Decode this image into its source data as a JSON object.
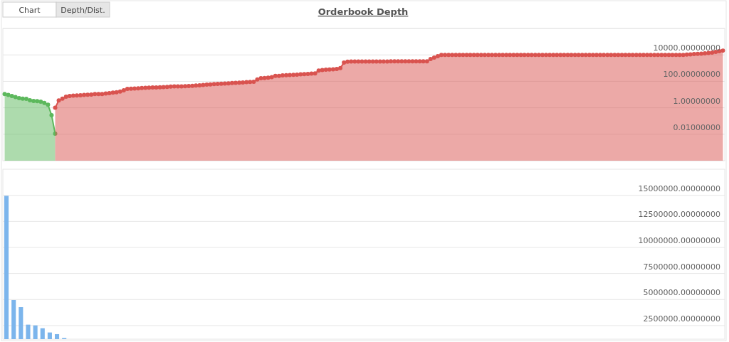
{
  "chart_data": [
    {
      "type": "area",
      "title": "Orderbook Depth",
      "annotations": [
        "Chart",
        "Depth/Dist."
      ],
      "log": true,
      "grid": "y",
      "marker": "circle",
      "tick_labels": "y",
      "ylim": [
        0.0001,
        1000000
      ],
      "yticks": [
        {
          "value": 0.01,
          "label": "0.01000000"
        },
        {
          "value": 1,
          "label": "1.00000000"
        },
        {
          "value": 100,
          "label": "100.00000000"
        },
        {
          "value": 10000,
          "label": "10000.00000000"
        },
        {
          "value": 1000000,
          "label": null
        }
      ],
      "categories": [
        null,
        null,
        null,
        null,
        null,
        null,
        null,
        null,
        null,
        null,
        null,
        null,
        null,
        null,
        null,
        null,
        null,
        null,
        null,
        null,
        null,
        null,
        null,
        null,
        null,
        null,
        null,
        null,
        null,
        null,
        null,
        null,
        null,
        null,
        null,
        null,
        null,
        null,
        null,
        null,
        null,
        null,
        null,
        null,
        null,
        null,
        null,
        null,
        null,
        null,
        null,
        null,
        null,
        null,
        null,
        null,
        null,
        null,
        null,
        null,
        null,
        null,
        null,
        null,
        null,
        null,
        null,
        null,
        null,
        null,
        null,
        null,
        null,
        null,
        null,
        null,
        null,
        null,
        null,
        null,
        null,
        null,
        null,
        null,
        null,
        null,
        null,
        null,
        null,
        null,
        null,
        null,
        null,
        null,
        null,
        null,
        null,
        null,
        null,
        null,
        null,
        null,
        null,
        null,
        null,
        null,
        null,
        null,
        null,
        null,
        null,
        null,
        null,
        null,
        null,
        null,
        null,
        null,
        null,
        null,
        null,
        null,
        null,
        null,
        null,
        null,
        null,
        null,
        null,
        null,
        null,
        null,
        null,
        null,
        null,
        null,
        null,
        null,
        null,
        null,
        null,
        null,
        null,
        null,
        null,
        null,
        null,
        null,
        null,
        null,
        null,
        null,
        null,
        null,
        null,
        null,
        null,
        null,
        null,
        null,
        null,
        null,
        null,
        null,
        null,
        null,
        null,
        null,
        null,
        null,
        null,
        null,
        null,
        null,
        null,
        null,
        null,
        null,
        null,
        null,
        null,
        null,
        null,
        null,
        null,
        null,
        null,
        null,
        null,
        null,
        null,
        null,
        null,
        null,
        null,
        null,
        null,
        null,
        null,
        null
      ],
      "series": [
        {
          "color": "#5cb85c",
          "values": [
            11,
            9.4,
            7.8,
            6.5,
            5.4,
            4.9,
            4.7,
            3.7,
            3.3,
            3.2,
            2.9,
            2.3,
            1.7,
            0.28,
            0.011,
            null,
            null,
            null,
            null,
            null,
            null,
            null,
            null,
            null,
            null,
            null,
            null,
            null,
            null,
            null,
            null,
            null,
            null,
            null,
            null,
            null,
            null,
            null,
            null,
            null,
            null,
            null,
            null,
            null,
            null,
            null,
            null,
            null,
            null,
            null,
            null,
            null,
            null,
            null,
            null,
            null,
            null,
            null,
            null,
            null,
            null,
            null,
            null,
            null,
            null,
            null,
            null,
            null,
            null,
            null,
            null,
            null,
            null,
            null,
            null,
            null,
            null,
            null,
            null,
            null,
            null,
            null,
            null,
            null,
            null,
            null,
            null,
            null,
            null,
            null,
            null,
            null,
            null,
            null,
            null,
            null,
            null,
            null,
            null,
            null,
            null,
            null,
            null,
            null,
            null,
            null,
            null,
            null,
            null,
            null,
            null,
            null,
            null,
            null,
            null,
            null,
            null,
            null,
            null,
            null,
            null,
            null,
            null,
            null,
            null,
            null,
            null,
            null,
            null,
            null,
            null,
            null,
            null,
            null,
            null,
            null,
            null,
            null,
            null,
            null,
            null,
            null,
            null,
            null,
            null,
            null,
            null,
            null,
            null,
            null,
            null,
            null,
            null,
            null,
            null,
            null,
            null,
            null,
            null,
            null,
            null,
            null,
            null,
            null,
            null,
            null,
            null,
            null,
            null,
            null,
            null,
            null,
            null,
            null,
            null,
            null,
            null,
            null,
            null,
            null,
            null,
            null,
            null,
            null,
            null,
            null,
            null,
            null,
            null,
            null,
            null,
            null,
            null,
            null,
            null,
            null,
            null,
            null,
            null,
            null
          ]
        },
        {
          "color": "#d9534f",
          "values": [
            null,
            null,
            null,
            null,
            null,
            null,
            null,
            null,
            null,
            null,
            null,
            null,
            null,
            null,
            1.0,
            3.6,
            4.9,
            6.8,
            7.9,
            8.3,
            8.6,
            8.9,
            9.4,
            9.8,
            10,
            11,
            11,
            11,
            12,
            13,
            14,
            15,
            17,
            21,
            27,
            28,
            29,
            30,
            31,
            32,
            33,
            34,
            35,
            36,
            37,
            38,
            40,
            41,
            42,
            42,
            43,
            44,
            46,
            48,
            50,
            53,
            56,
            59,
            62,
            65,
            66,
            69,
            71,
            74,
            77,
            80,
            83,
            86,
            89,
            93,
            140,
            170,
            180,
            190,
            210,
            260,
            260,
            280,
            290,
            300,
            310,
            320,
            340,
            350,
            360,
            380,
            400,
            660,
            710,
            750,
            780,
            810,
            860,
            1000,
            2600,
            3100,
            3200,
            3200,
            3200,
            3200,
            3200,
            3200,
            3200,
            3200,
            3200,
            3200,
            3200,
            3300,
            3300,
            3300,
            3300,
            3300,
            3300,
            3300,
            3300,
            3300,
            3300,
            3300,
            4900,
            6300,
            8000,
            10000,
            10000,
            10000,
            10000,
            10000,
            10000,
            10000,
            10000,
            10000,
            10000,
            10000,
            10000,
            10000,
            10000,
            10000,
            10000,
            10000,
            10000,
            10000,
            10000,
            10000,
            10000,
            10000,
            10000,
            10000,
            10000,
            10000,
            10000,
            10000,
            10000,
            10000,
            10000,
            10000,
            10000,
            10000,
            10000,
            10000,
            10000,
            10000,
            10000,
            10000,
            10000,
            10000,
            10000,
            10000,
            10000,
            10000,
            10000,
            10000,
            10000,
            10000,
            10000,
            10000,
            10000,
            10000,
            10000,
            10000,
            10000,
            10000,
            10000,
            10000,
            10000,
            10000,
            10000,
            10000,
            10000,
            10000,
            10000,
            10500,
            11000,
            11500,
            12000,
            12500,
            13000,
            14000,
            15000,
            17000,
            19000,
            21000
          ]
        }
      ]
    },
    {
      "type": "bar",
      "grid": "y",
      "tick_labels": "y",
      "color": "#7cb5ec",
      "ylim": [
        1200000,
        17500000
      ],
      "yticks": [
        {
          "value": 2500000,
          "label": "2500000.00000000"
        },
        {
          "value": 5000000,
          "label": "5000000.00000000"
        },
        {
          "value": 7500000,
          "label": "7500000.00000000"
        },
        {
          "value": 10000000,
          "label": "10000000.00000000"
        },
        {
          "value": 12500000,
          "label": "12500000.00000000"
        },
        {
          "value": 15000000,
          "label": "15000000.00000000"
        }
      ],
      "categories": [
        null,
        null,
        null,
        null,
        null,
        null,
        null,
        null,
        null,
        null,
        null,
        null,
        null,
        null,
        null,
        null,
        null,
        null,
        null,
        null,
        null,
        null,
        null,
        null,
        null,
        null,
        null,
        null,
        null,
        null,
        null,
        null,
        null,
        null,
        null,
        null,
        null,
        null,
        null,
        null,
        null,
        null,
        null,
        null,
        null,
        null,
        null,
        null,
        null,
        null,
        null,
        null,
        null,
        null,
        null,
        null,
        null,
        null,
        null,
        null,
        null,
        null,
        null,
        null,
        null,
        null,
        null,
        null,
        null,
        null,
        null,
        null,
        null,
        null,
        null,
        null,
        null,
        null,
        null,
        null,
        null,
        null,
        null,
        null,
        null,
        null,
        null,
        null,
        null,
        null,
        null,
        null,
        null,
        null,
        null,
        null,
        null,
        null,
        null,
        null
      ],
      "values": [
        14950000,
        4950000,
        4270000,
        2590000,
        2520000,
        2250000,
        1840000,
        1680000,
        1310000,
        null,
        null,
        null,
        null,
        null,
        null,
        null,
        null,
        null,
        null,
        null,
        null,
        null,
        null,
        null,
        null,
        null,
        null,
        null,
        null,
        null,
        null,
        null,
        null,
        null,
        null,
        null,
        null,
        null,
        null,
        null,
        null,
        null,
        null,
        null,
        null,
        null,
        null,
        null,
        null,
        null,
        null,
        null,
        null,
        null,
        null,
        null,
        null,
        null,
        null,
        null,
        null,
        null,
        null,
        null,
        null,
        null,
        null,
        null,
        null,
        null,
        null,
        null,
        null,
        null,
        null,
        null,
        null,
        null,
        null,
        null,
        null,
        null,
        null,
        null,
        null,
        null,
        null,
        null,
        null,
        null,
        null,
        null,
        null,
        null,
        null,
        null,
        null,
        null,
        null,
        null
      ]
    }
  ]
}
